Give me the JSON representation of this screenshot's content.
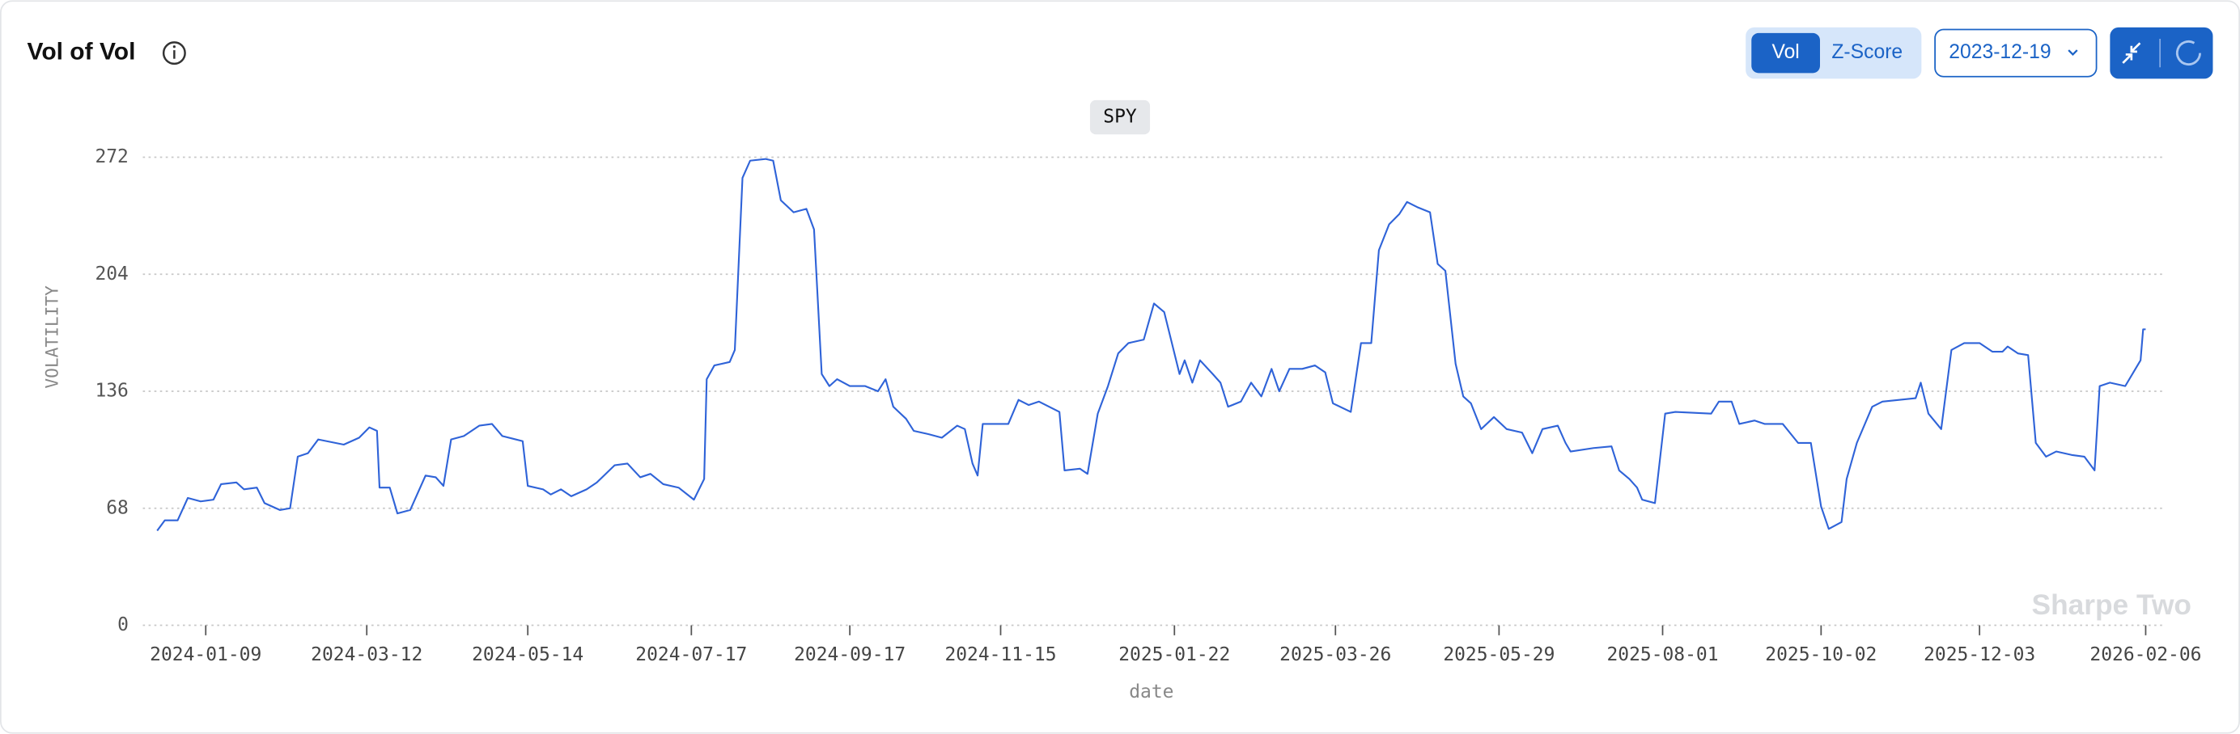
{
  "header": {
    "title": "Vol of Vol",
    "toggle": [
      "Vol",
      "Z-Score"
    ],
    "date": "2023-12-19"
  },
  "chart_data": {
    "type": "line",
    "y_label": "VOLATILITY",
    "x_label": "date",
    "watermark": "Sharpe Two",
    "xlim": [
      "2023-12-14",
      "2026-02-13"
    ],
    "xticks": [
      "2024-01-09",
      "2024-03-12",
      "2024-05-14",
      "2024-07-17",
      "2024-09-17",
      "2024-11-15",
      "2025-01-22",
      "2025-03-26",
      "2025-05-29",
      "2025-08-01",
      "2025-10-02",
      "2025-12-03",
      "2026-02-06"
    ],
    "ylim": [
      0,
      272
    ],
    "yticks": [
      0,
      68,
      136,
      204,
      272
    ],
    "grid": true,
    "x": [
      "2023-12-21",
      "2023-12-24",
      "2023-12-29",
      "2024-01-02",
      "2024-01-07",
      "2024-01-12",
      "2024-01-15",
      "2024-01-21",
      "2024-01-24",
      "2024-01-29",
      "2024-02-01",
      "2024-02-07",
      "2024-02-11",
      "2024-02-14",
      "2024-02-18",
      "2024-02-22",
      "2024-03-03",
      "2024-03-09",
      "2024-03-13",
      "2024-03-16",
      "2024-03-17",
      "2024-03-21",
      "2024-03-24",
      "2024-03-29",
      "2024-04-01",
      "2024-04-04",
      "2024-04-08",
      "2024-04-11",
      "2024-04-14",
      "2024-04-19",
      "2024-04-25",
      "2024-04-30",
      "2024-05-04",
      "2024-05-12",
      "2024-05-14",
      "2024-05-20",
      "2024-05-23",
      "2024-05-27",
      "2024-05-31",
      "2024-06-06",
      "2024-06-10",
      "2024-06-17",
      "2024-06-22",
      "2024-06-27",
      "2024-07-01",
      "2024-07-06",
      "2024-07-12",
      "2024-07-18",
      "2024-07-22",
      "2024-07-23",
      "2024-07-26",
      "2024-08-01",
      "2024-08-03",
      "2024-08-06",
      "2024-08-09",
      "2024-08-15",
      "2024-08-18",
      "2024-08-21",
      "2024-08-26",
      "2024-08-31",
      "2024-09-03",
      "2024-09-06",
      "2024-09-09",
      "2024-09-12",
      "2024-09-17",
      "2024-09-23",
      "2024-09-28",
      "2024-10-01",
      "2024-10-04",
      "2024-10-09",
      "2024-10-12",
      "2024-10-18",
      "2024-10-23",
      "2024-10-29",
      "2024-11-01",
      "2024-11-04",
      "2024-11-06",
      "2024-11-08",
      "2024-11-18",
      "2024-11-22",
      "2024-11-26",
      "2024-11-30",
      "2024-12-08",
      "2024-12-10",
      "2024-12-16",
      "2024-12-19",
      "2024-12-23",
      "2024-12-27",
      "2024-12-31",
      "2025-01-04",
      "2025-01-10",
      "2025-01-14",
      "2025-01-18",
      "2025-01-21",
      "2025-01-24",
      "2025-01-26",
      "2025-01-29",
      "2025-02-01",
      "2025-02-06",
      "2025-02-09",
      "2025-02-12",
      "2025-02-17",
      "2025-02-21",
      "2025-02-25",
      "2025-03-01",
      "2025-03-04",
      "2025-03-08",
      "2025-03-13",
      "2025-03-18",
      "2025-03-22",
      "2025-03-25",
      "2025-04-01",
      "2025-04-05",
      "2025-04-09",
      "2025-04-12",
      "2025-04-16",
      "2025-04-20",
      "2025-04-23",
      "2025-04-27",
      "2025-05-02",
      "2025-05-05",
      "2025-05-08",
      "2025-05-12",
      "2025-05-15",
      "2025-05-18",
      "2025-05-22",
      "2025-05-27",
      "2025-06-01",
      "2025-06-07",
      "2025-06-11",
      "2025-06-15",
      "2025-06-21",
      "2025-06-24",
      "2025-06-26",
      "2025-07-05",
      "2025-07-12",
      "2025-07-15",
      "2025-07-19",
      "2025-07-22",
      "2025-07-24",
      "2025-07-29",
      "2025-08-02",
      "2025-08-06",
      "2025-08-20",
      "2025-08-23",
      "2025-08-28",
      "2025-08-31",
      "2025-09-06",
      "2025-09-10",
      "2025-09-17",
      "2025-09-23",
      "2025-09-28",
      "2025-10-02",
      "2025-10-05",
      "2025-10-10",
      "2025-10-12",
      "2025-10-16",
      "2025-10-22",
      "2025-10-26",
      "2025-11-08",
      "2025-11-10",
      "2025-11-13",
      "2025-11-18",
      "2025-11-22",
      "2025-11-27",
      "2025-12-03",
      "2025-12-08",
      "2025-12-12",
      "2025-12-14",
      "2025-12-18",
      "2025-12-22",
      "2025-12-25",
      "2025-12-29",
      "2026-01-02",
      "2026-01-08",
      "2026-01-13",
      "2026-01-17",
      "2026-01-19",
      "2026-01-23",
      "2026-01-29",
      "2026-02-02",
      "2026-02-04",
      "2026-02-05",
      "2026-02-06"
    ],
    "series": [
      {
        "name": "SPY",
        "color": "#2f63d8",
        "values": [
          55,
          61,
          61,
          74,
          72,
          73,
          82,
          83,
          79,
          80,
          71,
          67,
          68,
          98,
          100,
          108,
          105,
          109,
          115,
          113,
          80,
          80,
          65,
          67,
          77,
          87,
          86,
          81,
          108,
          110,
          116,
          117,
          110,
          107,
          81,
          79,
          76,
          79,
          75,
          79,
          83,
          93,
          94,
          86,
          88,
          82,
          80,
          73,
          85,
          143,
          151,
          153,
          160,
          260,
          270,
          271,
          270,
          247,
          240,
          242,
          230,
          146,
          139,
          143,
          139,
          139,
          136,
          143,
          127,
          120,
          113,
          111,
          109,
          116,
          114,
          94,
          87,
          117,
          117,
          131,
          128,
          130,
          124,
          90,
          91,
          88,
          123,
          139,
          158,
          164,
          166,
          187,
          182,
          164,
          146,
          154,
          141,
          154,
          146,
          141,
          127,
          130,
          141,
          133,
          149,
          136,
          149,
          149,
          151,
          147,
          129,
          124,
          164,
          164,
          218,
          233,
          239,
          246,
          243,
          240,
          210,
          206,
          152,
          133,
          129,
          114,
          121,
          114,
          112,
          100,
          114,
          116,
          106,
          101,
          103,
          104,
          90,
          85,
          80,
          73,
          71,
          123,
          124,
          123,
          130,
          130,
          117,
          119,
          117,
          117,
          106,
          106,
          69,
          56,
          60,
          85,
          106,
          127,
          130,
          132,
          141,
          123,
          114,
          160,
          164,
          164,
          159,
          159,
          162,
          158,
          157,
          106,
          98,
          101,
          99,
          98,
          90,
          139,
          141,
          139,
          149,
          154,
          172,
          172
        ]
      }
    ]
  }
}
